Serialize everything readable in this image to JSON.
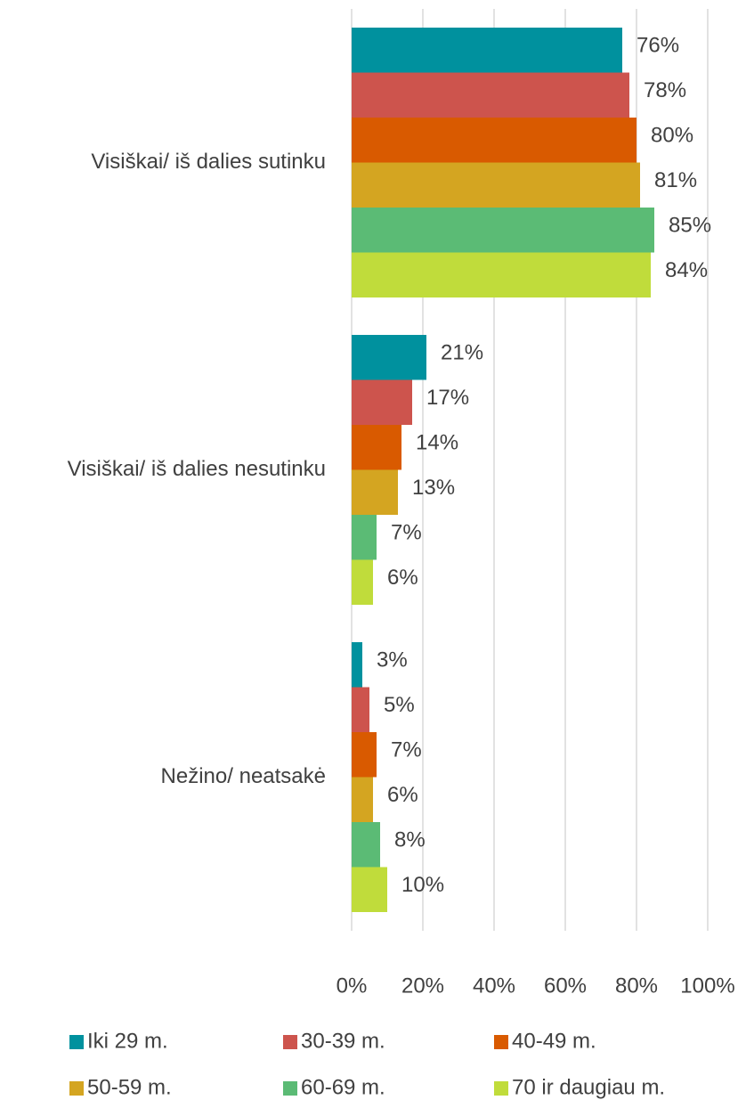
{
  "chart_data": {
    "type": "barh",
    "categories": [
      "Visiškai/ iš dalies sutinku",
      "Visiškai/ iš dalies nesutinku",
      "Nežino/ neatsakė"
    ],
    "series": [
      {
        "name": "Iki 29 m.",
        "color": "#00919e",
        "values": [
          76,
          21,
          3
        ],
        "value_labels": [
          "76%",
          "21%",
          "3%"
        ]
      },
      {
        "name": "30-39 m.",
        "color": "#cd544d",
        "values": [
          78,
          17,
          5
        ],
        "value_labels": [
          "78%",
          "17%",
          "5%"
        ]
      },
      {
        "name": "40-49 m.",
        "color": "#d95a00",
        "values": [
          80,
          14,
          7
        ],
        "value_labels": [
          "80%",
          "14%",
          "7%"
        ]
      },
      {
        "name": "50-59 m.",
        "color": "#d4a521",
        "values": [
          81,
          13,
          6
        ],
        "value_labels": [
          "81%",
          "13%",
          "6%"
        ]
      },
      {
        "name": "60-69 m.",
        "color": "#5bbb75",
        "values": [
          85,
          7,
          8
        ],
        "value_labels": [
          "85%",
          "7%",
          "8%"
        ]
      },
      {
        "name": "70 ir daugiau m.",
        "color": "#c0dc3b",
        "values": [
          84,
          6,
          10
        ],
        "value_labels": [
          "84%",
          "6%",
          "10%"
        ]
      }
    ],
    "xlim": [
      0,
      100
    ],
    "xticks": [
      {
        "value": 0,
        "label": "0%"
      },
      {
        "value": 20,
        "label": "20%"
      },
      {
        "value": 40,
        "label": "40%"
      },
      {
        "value": 60,
        "label": "60%"
      },
      {
        "value": 80,
        "label": "80%"
      },
      {
        "value": 100,
        "label": "100%"
      }
    ],
    "grid": true,
    "legend": "bottom"
  }
}
